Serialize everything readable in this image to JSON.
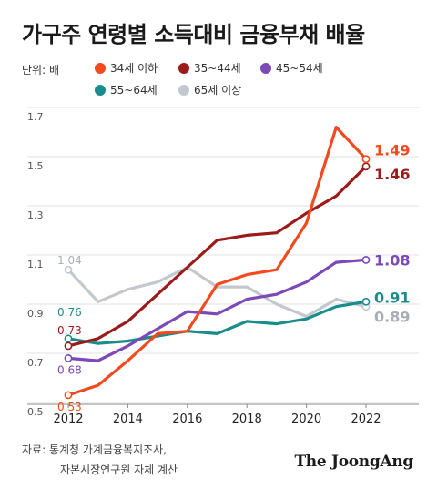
{
  "title": "가구주 연령별 소득대비 금융부채 배율",
  "unit_label": "단위: 배",
  "source_line1": "자료: 통계청 가계금융복지조사,",
  "source_line2": "자본시장연구원 자체 계산",
  "brand": "The JoongAng",
  "chart_data": {
    "type": "line",
    "x": [
      2012,
      2013,
      2014,
      2015,
      2016,
      2017,
      2018,
      2019,
      2020,
      2021,
      2022
    ],
    "xticks": [
      "2012",
      "2014",
      "2016",
      "2018",
      "2020",
      "2022"
    ],
    "yticks": [
      "0.5",
      "0.7",
      "0.9",
      "1.1",
      "1.3",
      "1.5",
      "1.7"
    ],
    "ylim": [
      0.5,
      1.7
    ],
    "xlim": [
      2012,
      2022
    ],
    "grid": "horizontal",
    "legend_placement": "top",
    "series": [
      {
        "name": "34세 이하",
        "color": "#f04a1e",
        "values": [
          0.53,
          0.57,
          0.67,
          0.78,
          0.79,
          0.98,
          1.02,
          1.04,
          1.23,
          1.62,
          1.49
        ],
        "start_label": "0.53",
        "end_label": "1.49"
      },
      {
        "name": "35~44세",
        "color": "#9b1b1b",
        "values": [
          0.73,
          0.76,
          0.83,
          0.94,
          1.05,
          1.16,
          1.18,
          1.19,
          1.27,
          1.34,
          1.46
        ],
        "start_label": "0.73",
        "end_label": "1.46"
      },
      {
        "name": "45~54세",
        "color": "#7b49b8",
        "values": [
          0.68,
          0.67,
          0.73,
          0.8,
          0.87,
          0.86,
          0.92,
          0.94,
          0.99,
          1.07,
          1.08
        ],
        "start_label": "0.68",
        "end_label": "1.08"
      },
      {
        "name": "55~64세",
        "color": "#1a8c8c",
        "values": [
          0.76,
          0.74,
          0.75,
          0.77,
          0.79,
          0.78,
          0.83,
          0.82,
          0.84,
          0.89,
          0.91
        ],
        "start_label": "0.76",
        "end_label": "0.91"
      },
      {
        "name": "65세 이상",
        "color": "#c2c8cd",
        "values": [
          1.04,
          0.91,
          0.96,
          0.99,
          1.05,
          0.97,
          0.97,
          0.9,
          0.85,
          0.92,
          0.89
        ],
        "start_label": "1.04",
        "end_label": "0.89"
      }
    ]
  }
}
